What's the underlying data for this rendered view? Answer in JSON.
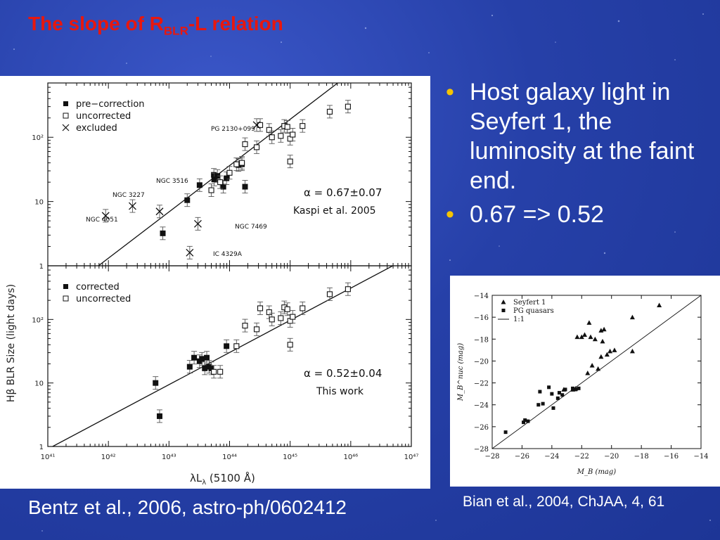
{
  "slide": {
    "title_main": "The slope of R",
    "title_sub": "BLR",
    "title_tail": "-L relation",
    "bullets": [
      "Host galaxy light in Seyfert 1, the luminosity at the faint end.",
      "0.67 => 0.52"
    ],
    "caption_left": "Bentz et al., 2006, astro-ph/0602412",
    "caption_right": "Bian et al., 2004, ChJAA, 4, 61",
    "colors": {
      "title": "#e8170e",
      "bullet": "#f5c400",
      "background": "#2640a8"
    }
  },
  "chart_data": [
    {
      "type": "scatter",
      "panel": "top",
      "scale": "log-log",
      "xlim": [
        1e+41,
        1e+47
      ],
      "ylim": [
        1,
        700
      ],
      "ylabel": "Hβ BLR Size  (light days)",
      "legend": [
        "pre−correction",
        "uncorrected",
        "excluded"
      ],
      "annotation_alpha": "α  =  0.67±0.07",
      "annotation_ref": "Kaspi et al. 2005",
      "fit": [
        [
          1e+41,
          0.25
        ],
        [
          1e+46,
          1000
        ]
      ],
      "object_labels": [
        "PG 2130+099",
        "NGC 3516",
        "NGC 3227",
        "NGC 4051",
        "NGC 7469",
        "IC 4329A"
      ],
      "series": [
        {
          "name": "pre−correction",
          "marker": "filled-square",
          "x": [
            7.9e+42,
            2e+43,
            3.2e+43,
            5.5e+43,
            5.6e+43,
            6.3e+43,
            7.9e+43,
            8.9e+43,
            1.4e+44,
            1.6e+44,
            1.8e+44
          ],
          "y": [
            3.2,
            10.5,
            18,
            26,
            22,
            25,
            17,
            23,
            37,
            38,
            17
          ]
        },
        {
          "name": "uncorrected",
          "marker": "open-square",
          "x": [
            5e+43,
            7e+43,
            1e+44,
            1.3e+44,
            1.6e+44,
            1.8e+44,
            2.8e+44,
            3.2e+44,
            4.5e+44,
            5e+44,
            7e+44,
            8e+44,
            9e+44,
            1e+45,
            1e+45,
            1.1e+45,
            1.6e+45,
            4.5e+45,
            9e+45
          ],
          "y": [
            15,
            20,
            28,
            38,
            40,
            78,
            70,
            155,
            130,
            100,
            105,
            150,
            145,
            95,
            42,
            110,
            150,
            250,
            300
          ]
        },
        {
          "name": "excluded",
          "marker": "cross",
          "x": [
            9e+41,
            2.5e+42,
            7e+42,
            2.2e+43,
            3e+43,
            2.8e+44
          ],
          "y": [
            6,
            8.5,
            7,
            1.6,
            4.5,
            155
          ]
        }
      ]
    },
    {
      "type": "scatter",
      "panel": "bottom",
      "scale": "log-log",
      "xlim": [
        1e+41,
        1e+47
      ],
      "ylim": [
        1,
        700
      ],
      "xlabel": "λL",
      "xlabel_sub": "λ",
      "xlabel_tail": "  (5100 Å)",
      "xticks": [
        "10⁴¹",
        "10⁴²",
        "10⁴³",
        "10⁴⁴",
        "10⁴⁵",
        "10⁴⁶",
        "10⁴⁷"
      ],
      "yticks": [
        "1",
        "10",
        "10²"
      ],
      "legend": [
        "corrected",
        "uncorrected"
      ],
      "annotation_alpha": "α  =  0.52±0.04",
      "annotation_ref": "This work",
      "fit": [
        [
          1.2e+41,
          1
        ],
        [
          1e+47,
          1000
        ]
      ],
      "series": [
        {
          "name": "corrected",
          "marker": "filled-square",
          "x": [
            6e+42,
            7e+42,
            2.2e+43,
            2.6e+43,
            3.2e+43,
            3.5e+43,
            3.9e+43,
            4.2e+43,
            4.6e+43,
            5e+43,
            8.9e+43
          ],
          "y": [
            10,
            3,
            18,
            25,
            22,
            24,
            17,
            25,
            18,
            17,
            38
          ]
        },
        {
          "name": "uncorrected",
          "marker": "open-square",
          "x": [
            5.5e+43,
            7e+43,
            1.3e+44,
            1.8e+44,
            2.8e+44,
            3.2e+44,
            4.5e+44,
            5e+44,
            7e+44,
            8e+44,
            9e+44,
            1e+45,
            1e+45,
            1.1e+45,
            1.6e+45,
            4.5e+45,
            9e+45
          ],
          "y": [
            15,
            15,
            38,
            80,
            70,
            150,
            130,
            100,
            105,
            155,
            145,
            95,
            40,
            110,
            150,
            250,
            300
          ]
        }
      ]
    },
    {
      "type": "scatter",
      "panel": "bian",
      "xlabel": "M_B (mag)",
      "ylabel": "M_B^nuc (mag)",
      "xlim": [
        -28,
        -14
      ],
      "ylim": [
        -28,
        -14
      ],
      "xticks": [
        "−28",
        "−26",
        "−24",
        "−22",
        "−20",
        "−18",
        "−16",
        "−14"
      ],
      "yticks": [
        "−14",
        "−16",
        "−18",
        "−20",
        "−22",
        "−24",
        "−26",
        "−28"
      ],
      "legend": [
        "Seyfert 1",
        "PG quasars",
        "1:1"
      ],
      "series": [
        {
          "name": "Seyfert 1",
          "marker": "triangle",
          "x": [
            -16.8,
            -18.6,
            -18.6,
            -19.8,
            -20.1,
            -20.3,
            -20.5,
            -20.6,
            -20.7,
            -20.7,
            -20.9,
            -21.1,
            -21.3,
            -21.4,
            -21.5,
            -21.6,
            -21.8,
            -22.0,
            -22.3,
            -22.4,
            -22.6,
            -23.2
          ],
          "y": [
            -14.9,
            -16.0,
            -19.1,
            -19.0,
            -19.1,
            -19.4,
            -17.1,
            -18.2,
            -17.2,
            -19.6,
            -20.7,
            -18.0,
            -20.4,
            -17.8,
            -16.5,
            -21.1,
            -17.6,
            -17.8,
            -17.8,
            -22.5,
            -22.6,
            -22.6
          ]
        },
        {
          "name": "PG quasars",
          "marker": "square",
          "x": [
            -27.1,
            -25.9,
            -25.8,
            -25.6,
            -24.9,
            -24.8,
            -24.6,
            -24.2,
            -24.0,
            -23.9,
            -23.6,
            -23.5,
            -23.3,
            -23.1,
            -22.6,
            -22.4,
            -22.2
          ],
          "y": [
            -26.5,
            -25.6,
            -25.4,
            -25.5,
            -24.0,
            -22.8,
            -23.9,
            -22.4,
            -23.0,
            -24.3,
            -23.4,
            -22.9,
            -23.1,
            -22.6,
            -22.5,
            -22.6,
            -22.5
          ]
        }
      ]
    }
  ]
}
